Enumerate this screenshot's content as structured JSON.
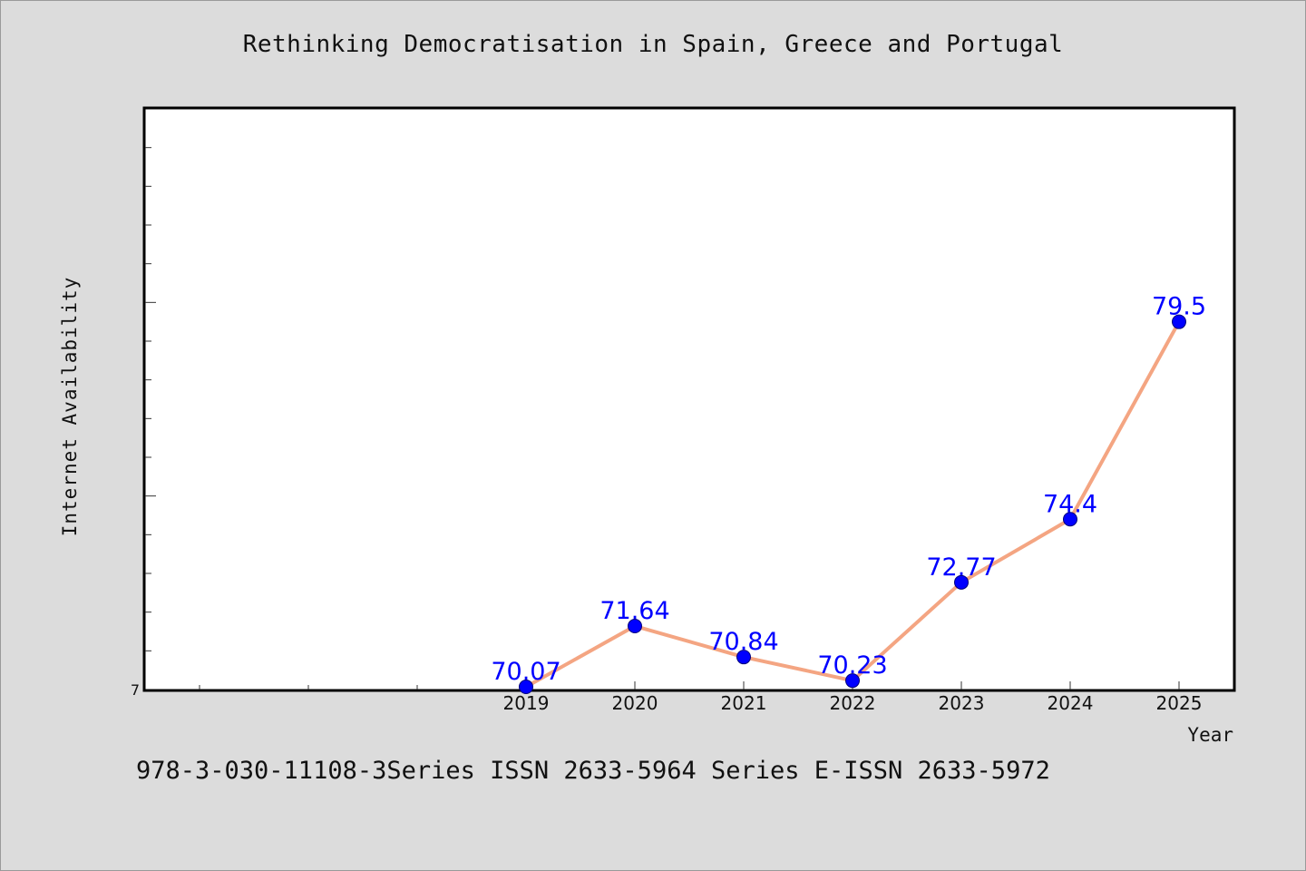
{
  "page": {
    "title": "Rethinking Democratisation in Spain, Greece and Portugal",
    "footer": "978-3-030-11108-3Series ISSN 2633-5964 Series E-ISSN 2633-5972"
  },
  "chart_data": {
    "type": "line",
    "title": "Rethinking Democratisation in Spain, Greece and Portugal",
    "xlabel": "Year",
    "ylabel": "Internet Availability",
    "categories": [
      "2019",
      "2020",
      "2021",
      "2022",
      "2023",
      "2024",
      "2025"
    ],
    "x": [
      2019,
      2020,
      2021,
      2022,
      2023,
      2024,
      2025
    ],
    "series": [
      {
        "values": [
          70.07,
          71.64,
          70.84,
          70.23,
          72.77,
          74.4,
          79.5
        ],
        "data_labels": [
          "70.07",
          "71.64",
          "70.84",
          "70.23",
          "72.77",
          "74.4",
          "79.5"
        ]
      }
    ],
    "xlim": [
      2015.5,
      2025.5
    ],
    "ylim": [
      70,
      85
    ],
    "y_tick_labels": [
      "7"
    ],
    "grid": false,
    "legend": "none",
    "colors": {
      "line": "#f4a582",
      "marker": "#0000ff",
      "data_label": "#0000ff",
      "background": "#dcdcdc",
      "plot_area": "#ffffff"
    }
  }
}
